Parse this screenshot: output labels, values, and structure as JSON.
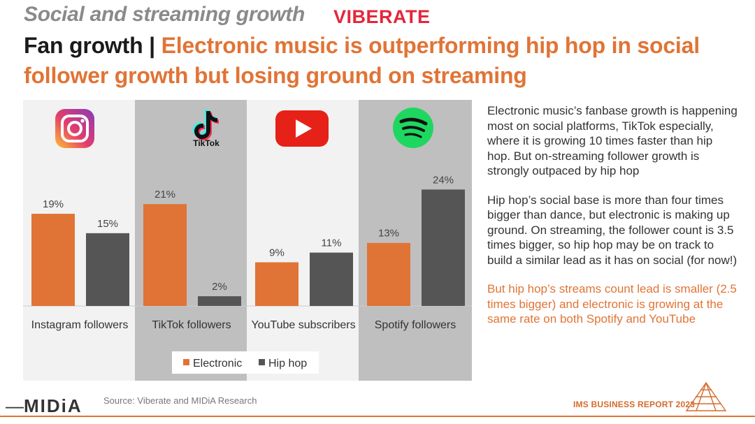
{
  "header": {
    "kicker": "Social and streaming growth",
    "brand": "VIBERATE",
    "title_prefix": "Fan growth | ",
    "title_main": "Electronic music is outperforming hip hop in social follower growth but losing ground on streaming"
  },
  "chart_data": {
    "type": "bar",
    "categories": [
      "Instagram followers",
      "TikTok followers",
      "YouTube subscribers",
      "Spotify followers"
    ],
    "category_icons": [
      "instagram-icon",
      "tiktok-icon",
      "youtube-icon",
      "spotify-icon"
    ],
    "icon_text": {
      "tiktok": "TikTok"
    },
    "series": [
      {
        "name": "Electronic",
        "values": [
          19,
          21,
          9,
          13
        ],
        "labels": [
          "19%",
          "21%",
          "9%",
          "13%"
        ],
        "color": "#e07436"
      },
      {
        "name": "Hip hop",
        "values": [
          15,
          2,
          11,
          24
        ],
        "labels": [
          "15%",
          "2%",
          "11%",
          "24%"
        ],
        "color": "#555555"
      }
    ],
    "unit": "%",
    "ylim": [
      0,
      36
    ],
    "grid": false,
    "legend": "bottom-center",
    "title": "",
    "xlabel": "",
    "ylabel": "",
    "panel_colors": [
      "#f2f2f2",
      "#bfbfbf"
    ]
  },
  "commentary": {
    "p1": "Electronic music’s fanbase growth is happening most on social platforms, TikTok especially, where it is growing 10 times faster than hip hop. But on-streaming follower growth is strongly outpaced by hip hop",
    "p2": "Hip hop’s social base is more than four times bigger than dance, but electronic is making up ground. On streaming, the follower count is 3.5 times bigger, so hip hop may be on track to build a similar lead as it has on social (for now!)",
    "p3": "But hip hop’s streams count lead is smaller (2.5 times bigger) and electronic is growing at the same rate on both Spotify and YouTube"
  },
  "footer": {
    "logo": "MIDiA",
    "source": "Source: Viberate and MIDiA Research",
    "report": "IMS BUSINESS REPORT 2023"
  },
  "colors": {
    "accent": "#e07436",
    "brand": "#e4263c",
    "text": "#333333"
  }
}
